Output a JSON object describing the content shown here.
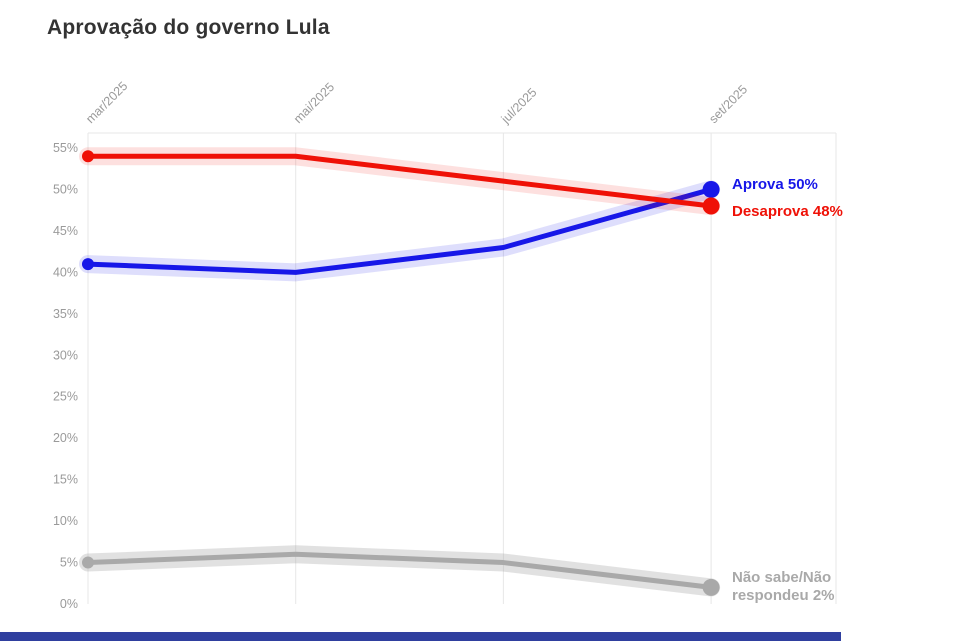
{
  "title": "Aprovação do governo Lula",
  "chart_data": {
    "type": "line",
    "x": [
      "mar/2025",
      "mai/2025",
      "jul/2025",
      "set/2025"
    ],
    "yticks": [
      "0%",
      "5%",
      "10%",
      "15%",
      "20%",
      "25%",
      "30%",
      "35%",
      "40%",
      "45%",
      "50%",
      "55%"
    ],
    "ytick_step": 5,
    "ylim": [
      0,
      55
    ],
    "grid": "vertical",
    "legend_position": "right-of-line-ends",
    "series": [
      {
        "name": "Aprova",
        "values": [
          41,
          40,
          43,
          50
        ],
        "color": "#1717e8",
        "band_opacity": 0.14,
        "end_label": "Aprova 50%"
      },
      {
        "name": "Desaprova",
        "values": [
          54,
          54,
          51,
          48
        ],
        "color": "#ef1107",
        "band_opacity": 0.13,
        "end_label": "Desaprova 48%"
      },
      {
        "name": "Não sabe/Não respondeu",
        "values": [
          5,
          6,
          5,
          2
        ],
        "color": "#a9a9a9",
        "band_opacity": 0.35,
        "end_label": "Não sabe/Não respondeu 2%"
      }
    ]
  },
  "colors": {
    "title": "#333333",
    "axis_labels": "#9a9a9a",
    "gridlines": "#e7e7e7",
    "footer_bar": "#2f3f9f"
  }
}
